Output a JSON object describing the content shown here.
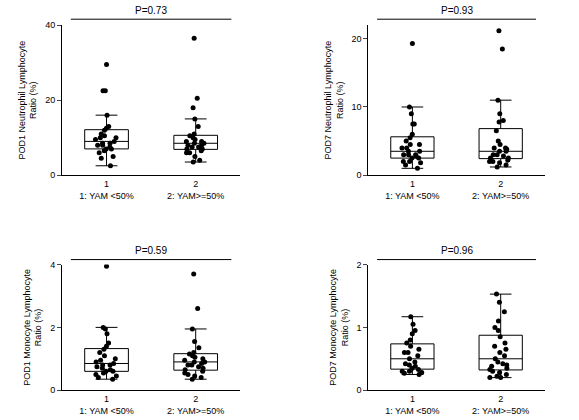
{
  "chart_data": [
    {
      "type": "box",
      "title": "P=0.73",
      "y_label": "POD1 Neutrophil Lymphocyte Ratio (%)",
      "categories": [
        "1",
        "2"
      ],
      "annotations": [
        "1: YAM <50%",
        "2: YAM>=50%"
      ],
      "color": "#000000",
      "grid": false,
      "ylim": [
        0,
        40
      ],
      "yticks": [
        0,
        20,
        40
      ],
      "values": [
        [
          29.5,
          22.5,
          22.5,
          16,
          13,
          12.5,
          12,
          11,
          10.5,
          10,
          10,
          9.5,
          9,
          8.5,
          8.5,
          8,
          8,
          7.5,
          7,
          7,
          6.5,
          6,
          5,
          4.5,
          2.5
        ],
        [
          36.5,
          20.5,
          18,
          15,
          13,
          11,
          10.5,
          10,
          9.5,
          9,
          9,
          8.5,
          8.5,
          8,
          8,
          7.5,
          7.5,
          7,
          7,
          6.5,
          6,
          6,
          5,
          4,
          3.5
        ]
      ]
    },
    {
      "type": "box",
      "title": "P=0.93",
      "y_label": "POD7 Neutrophil Lymphocyte Ratio (%)",
      "categories": [
        "1",
        "2"
      ],
      "annotations": [
        "1: YAM <50%",
        "2: YAM>=50%"
      ],
      "color": "#000000",
      "grid": false,
      "ylim": [
        0,
        22
      ],
      "yticks": [
        0,
        10,
        20
      ],
      "values": [
        [
          19.3,
          10,
          9,
          7.5,
          7.5,
          6,
          5.5,
          5,
          4.5,
          4.5,
          4,
          4,
          3.5,
          3.5,
          3,
          3,
          3,
          2.8,
          2.5,
          2.5,
          2,
          2,
          1.8,
          1.5,
          1
        ],
        [
          21.2,
          18.5,
          11,
          9,
          8,
          7.8,
          6.5,
          5,
          4.5,
          4,
          4,
          3.8,
          3.5,
          3.5,
          3,
          3,
          2.8,
          2.5,
          2.5,
          2.2,
          2,
          2,
          1.8,
          1.5,
          1.2
        ]
      ]
    },
    {
      "type": "box",
      "title": "P=0.59",
      "y_label": "POD1 Monocyte Lymphocyte Ratio (%)",
      "categories": [
        "1",
        "2"
      ],
      "annotations": [
        "1: YAM <50%",
        "2: YAM>=50%"
      ],
      "color": "#000000",
      "grid": false,
      "ylim": [
        0,
        4
      ],
      "yticks": [
        0,
        2,
        4
      ],
      "values": [
        [
          3.95,
          2.0,
          1.95,
          1.8,
          1.5,
          1.4,
          1.3,
          1.2,
          1.1,
          1.0,
          0.95,
          0.9,
          0.85,
          0.8,
          0.8,
          0.75,
          0.7,
          0.65,
          0.6,
          0.6,
          0.55,
          0.5,
          0.45,
          0.4,
          0.35
        ],
        [
          3.7,
          2.6,
          1.95,
          1.55,
          1.35,
          1.2,
          1.15,
          1.1,
          1.05,
          1.0,
          0.95,
          0.9,
          0.9,
          0.85,
          0.8,
          0.8,
          0.75,
          0.7,
          0.65,
          0.6,
          0.55,
          0.5,
          0.45,
          0.4,
          0.35
        ]
      ]
    },
    {
      "type": "box",
      "title": "P=0.96",
      "y_label": "POD7 Monocyte Lymphocyte Ratio (%)",
      "categories": [
        "1",
        "2"
      ],
      "annotations": [
        "1: YAM <50%",
        "2: YAM>=50%"
      ],
      "color": "#000000",
      "grid": false,
      "ylim": [
        0,
        2
      ],
      "yticks": [
        0,
        1,
        2
      ],
      "values": [
        [
          1.17,
          1.05,
          0.95,
          0.9,
          0.8,
          0.75,
          0.7,
          0.65,
          0.6,
          0.6,
          0.55,
          0.5,
          0.45,
          0.42,
          0.4,
          0.38,
          0.35,
          0.33,
          0.3,
          0.3,
          0.28,
          0.27,
          0.25
        ],
        [
          1.53,
          1.4,
          1.25,
          1.1,
          1.0,
          0.95,
          0.85,
          0.75,
          0.7,
          0.65,
          0.6,
          0.55,
          0.5,
          0.45,
          0.42,
          0.4,
          0.38,
          0.35,
          0.33,
          0.3,
          0.28,
          0.25,
          0.22,
          0.2,
          0.2
        ]
      ]
    }
  ]
}
